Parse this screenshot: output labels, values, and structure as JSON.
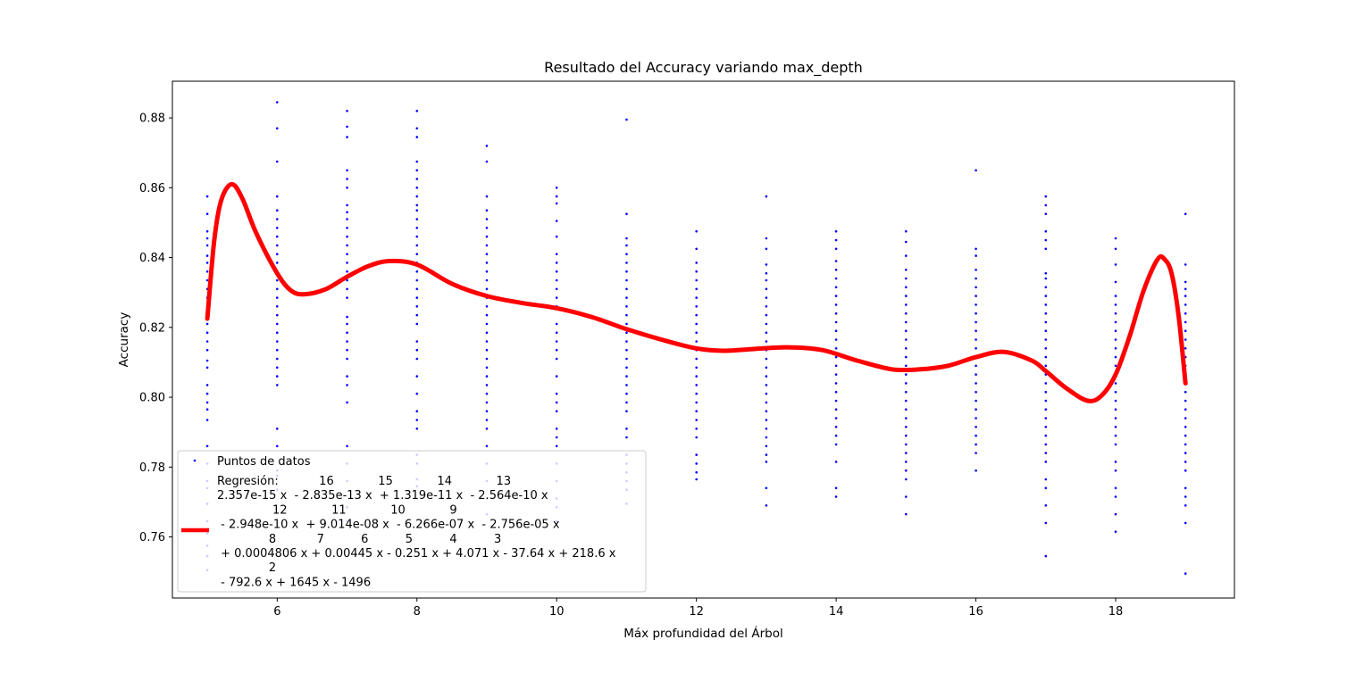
{
  "chart_data": {
    "type": "scatter",
    "title": "Resultado del Accuracy variando max_depth",
    "xlabel": "Máx profundidad del Árbol",
    "ylabel": "Accuracy",
    "xlim": [
      4.5,
      19.7
    ],
    "ylim": [
      0.7425,
      0.8905
    ],
    "xticks": [
      6,
      8,
      10,
      12,
      14,
      16,
      18
    ],
    "xtick_labels": [
      "6",
      "8",
      "10",
      "12",
      "14",
      "16",
      "18"
    ],
    "yticks": [
      0.76,
      0.78,
      0.8,
      0.82,
      0.84,
      0.86,
      0.88
    ],
    "ytick_labels": [
      "0.76",
      "0.78",
      "0.80",
      "0.82",
      "0.84",
      "0.86",
      "0.88"
    ],
    "grid": false,
    "legend_position": "lower-left",
    "colors": {
      "points": "#0000ff",
      "curve": "#ff0000"
    },
    "scatter": {
      "name": "Puntos de datos",
      "points": [
        {
          "x": 5,
          "y": [
            0.7505,
            0.7545,
            0.7575,
            0.761,
            0.7645,
            0.7695,
            0.774,
            0.776,
            0.781,
            0.786,
            0.7935,
            0.7965,
            0.7985,
            0.801,
            0.8035,
            0.8085,
            0.8105,
            0.8135,
            0.816,
            0.8185,
            0.821,
            0.8235,
            0.826,
            0.8285,
            0.831,
            0.8335,
            0.836,
            0.8385,
            0.8405,
            0.8435,
            0.8455,
            0.8475,
            0.8525,
            0.8575
          ]
        },
        {
          "x": 6,
          "y": [
            0.7735,
            0.7775,
            0.779,
            0.786,
            0.791,
            0.8035,
            0.806,
            0.8085,
            0.811,
            0.8135,
            0.816,
            0.8185,
            0.821,
            0.8235,
            0.826,
            0.8285,
            0.831,
            0.8335,
            0.836,
            0.8385,
            0.841,
            0.8435,
            0.846,
            0.8485,
            0.851,
            0.8535,
            0.8575,
            0.8675,
            0.877,
            0.8845
          ]
        },
        {
          "x": 7,
          "y": [
            0.7645,
            0.7685,
            0.776,
            0.781,
            0.786,
            0.7985,
            0.8035,
            0.806,
            0.811,
            0.8135,
            0.816,
            0.8185,
            0.821,
            0.823,
            0.8285,
            0.831,
            0.8335,
            0.836,
            0.8385,
            0.841,
            0.8435,
            0.846,
            0.8485,
            0.851,
            0.853,
            0.855,
            0.86,
            0.8625,
            0.865,
            0.8745,
            0.8775,
            0.882
          ]
        },
        {
          "x": 8,
          "y": [
            0.7745,
            0.7765,
            0.781,
            0.7835,
            0.791,
            0.7935,
            0.796,
            0.801,
            0.806,
            0.811,
            0.8135,
            0.816,
            0.821,
            0.8235,
            0.826,
            0.8285,
            0.831,
            0.8335,
            0.836,
            0.8385,
            0.841,
            0.8435,
            0.846,
            0.8485,
            0.851,
            0.8535,
            0.855,
            0.8575,
            0.86,
            0.8625,
            0.865,
            0.8675,
            0.8745,
            0.877,
            0.882
          ]
        },
        {
          "x": 9,
          "y": [
            0.7665,
            0.771,
            0.776,
            0.781,
            0.786,
            0.791,
            0.7935,
            0.796,
            0.7985,
            0.801,
            0.8035,
            0.806,
            0.8085,
            0.811,
            0.8135,
            0.816,
            0.8185,
            0.821,
            0.8235,
            0.826,
            0.8285,
            0.831,
            0.8335,
            0.836,
            0.8385,
            0.841,
            0.8435,
            0.846,
            0.8485,
            0.851,
            0.8535,
            0.8575,
            0.8675,
            0.872
          ]
        },
        {
          "x": 10,
          "y": [
            0.7645,
            0.7685,
            0.771,
            0.776,
            0.781,
            0.786,
            0.7885,
            0.791,
            0.796,
            0.7985,
            0.801,
            0.806,
            0.811,
            0.8135,
            0.816,
            0.8185,
            0.821,
            0.826,
            0.8285,
            0.831,
            0.8335,
            0.836,
            0.8385,
            0.841,
            0.846,
            0.8505,
            0.8555,
            0.8575,
            0.86
          ]
        },
        {
          "x": 11,
          "y": [
            0.7695,
            0.7735,
            0.776,
            0.7785,
            0.781,
            0.7835,
            0.7885,
            0.791,
            0.796,
            0.7985,
            0.801,
            0.8035,
            0.806,
            0.8085,
            0.811,
            0.8135,
            0.816,
            0.8185,
            0.821,
            0.8235,
            0.826,
            0.8285,
            0.831,
            0.8335,
            0.836,
            0.8385,
            0.841,
            0.8435,
            0.8455,
            0.8525,
            0.8795
          ]
        },
        {
          "x": 12,
          "y": [
            0.7765,
            0.7785,
            0.781,
            0.7835,
            0.7885,
            0.791,
            0.7935,
            0.796,
            0.7985,
            0.801,
            0.8035,
            0.806,
            0.8085,
            0.811,
            0.8135,
            0.816,
            0.8185,
            0.821,
            0.8235,
            0.826,
            0.8285,
            0.831,
            0.8335,
            0.836,
            0.8385,
            0.8425,
            0.8475
          ]
        },
        {
          "x": 13,
          "y": [
            0.769,
            0.774,
            0.7815,
            0.7835,
            0.786,
            0.7885,
            0.791,
            0.7935,
            0.796,
            0.7985,
            0.801,
            0.8035,
            0.806,
            0.8085,
            0.811,
            0.8135,
            0.816,
            0.8185,
            0.821,
            0.8235,
            0.826,
            0.8285,
            0.831,
            0.8335,
            0.8355,
            0.838,
            0.8425,
            0.8455,
            0.8575
          ]
        },
        {
          "x": 14,
          "y": [
            0.7715,
            0.774,
            0.7815,
            0.7865,
            0.789,
            0.7915,
            0.794,
            0.7965,
            0.799,
            0.8015,
            0.804,
            0.8065,
            0.809,
            0.8115,
            0.814,
            0.8165,
            0.819,
            0.8215,
            0.824,
            0.8265,
            0.829,
            0.8315,
            0.834,
            0.8365,
            0.839,
            0.8425,
            0.845,
            0.8475
          ]
        },
        {
          "x": 15,
          "y": [
            0.7665,
            0.7715,
            0.7765,
            0.779,
            0.7815,
            0.784,
            0.7865,
            0.789,
            0.7915,
            0.794,
            0.7965,
            0.799,
            0.8015,
            0.804,
            0.8065,
            0.809,
            0.8115,
            0.814,
            0.8165,
            0.819,
            0.8215,
            0.824,
            0.8265,
            0.829,
            0.8315,
            0.834,
            0.8365,
            0.8405,
            0.8445,
            0.8475
          ]
        },
        {
          "x": 16,
          "y": [
            0.779,
            0.784,
            0.7865,
            0.789,
            0.7915,
            0.794,
            0.7965,
            0.799,
            0.8015,
            0.804,
            0.8065,
            0.809,
            0.8115,
            0.814,
            0.8165,
            0.819,
            0.8215,
            0.824,
            0.8265,
            0.829,
            0.8315,
            0.834,
            0.8365,
            0.8405,
            0.8425,
            0.865
          ]
        },
        {
          "x": 17,
          "y": [
            0.7545,
            0.764,
            0.769,
            0.774,
            0.7765,
            0.7815,
            0.784,
            0.7865,
            0.789,
            0.7915,
            0.794,
            0.7965,
            0.799,
            0.8015,
            0.804,
            0.8065,
            0.809,
            0.8115,
            0.814,
            0.8165,
            0.819,
            0.8215,
            0.824,
            0.8265,
            0.829,
            0.8315,
            0.834,
            0.8355,
            0.8425,
            0.845,
            0.8475,
            0.8525,
            0.855,
            0.8575
          ]
        },
        {
          "x": 18,
          "y": [
            0.7615,
            0.7665,
            0.7715,
            0.774,
            0.779,
            0.7815,
            0.7865,
            0.789,
            0.7915,
            0.794,
            0.7965,
            0.799,
            0.8015,
            0.804,
            0.8065,
            0.809,
            0.8115,
            0.814,
            0.8165,
            0.819,
            0.8215,
            0.824,
            0.8265,
            0.829,
            0.833,
            0.838,
            0.8425,
            0.8455
          ]
        },
        {
          "x": 19,
          "y": [
            0.7495,
            0.764,
            0.769,
            0.7715,
            0.774,
            0.779,
            0.7815,
            0.784,
            0.7865,
            0.789,
            0.7915,
            0.794,
            0.7965,
            0.799,
            0.8015,
            0.804,
            0.8065,
            0.809,
            0.8115,
            0.814,
            0.8165,
            0.819,
            0.8215,
            0.824,
            0.8265,
            0.829,
            0.831,
            0.833,
            0.838,
            0.8525
          ]
        }
      ]
    },
    "regression": {
      "degree": 16,
      "x": [
        5.0,
        5.1,
        5.2,
        5.35,
        5.5,
        5.7,
        6.0,
        6.2,
        6.4,
        6.7,
        7.0,
        7.3,
        7.6,
        8.0,
        8.5,
        9.0,
        9.5,
        10.0,
        10.5,
        11.0,
        11.5,
        12.0,
        12.4,
        12.8,
        13.3,
        13.8,
        14.3,
        14.8,
        15.2,
        15.6,
        16.0,
        16.4,
        16.8,
        17.0,
        17.3,
        17.6,
        17.8,
        18.0,
        18.2,
        18.4,
        18.6,
        18.7,
        18.8,
        18.9,
        19.0
      ],
      "y": [
        0.8225,
        0.845,
        0.8565,
        0.861,
        0.857,
        0.847,
        0.8355,
        0.8305,
        0.8295,
        0.831,
        0.8345,
        0.8375,
        0.839,
        0.838,
        0.8325,
        0.829,
        0.827,
        0.8255,
        0.823,
        0.8195,
        0.8165,
        0.814,
        0.8133,
        0.8138,
        0.8143,
        0.8135,
        0.8105,
        0.808,
        0.808,
        0.809,
        0.8115,
        0.813,
        0.8105,
        0.8075,
        0.8025,
        0.799,
        0.8005,
        0.8065,
        0.8175,
        0.8305,
        0.8395,
        0.8395,
        0.8355,
        0.8235,
        0.804
      ]
    },
    "legend": {
      "scatter_label": "Puntos de datos",
      "regression_lines": [
        "Regresión:           16            15            14            13",
        "2.357e-15 x  - 2.835e-13 x  + 1.319e-11 x  - 2.564e-10 x",
        "               12            11            10            9",
        " - 2.948e-10 x  + 9.014e-08 x  - 6.266e-07 x  - 2.756e-05 x",
        "              8           7          6          5          4          3",
        " + 0.0004806 x + 0.00445 x - 0.251 x + 4.071 x - 37.64 x + 218.6 x",
        "              2",
        " - 792.6 x + 1645 x - 1496"
      ]
    }
  }
}
